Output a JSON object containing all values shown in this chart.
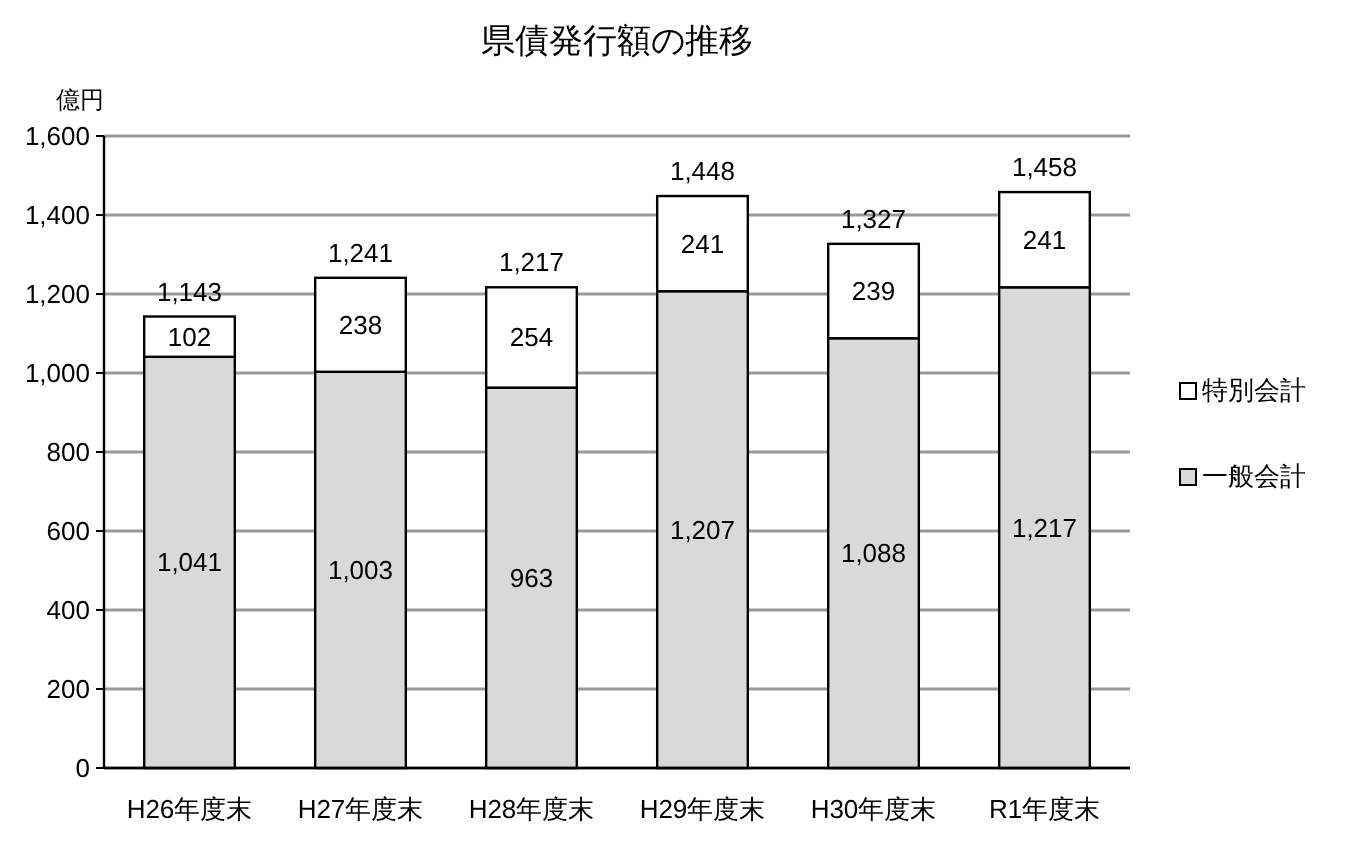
{
  "chart_data": {
    "type": "bar",
    "title": "県債発行額の推移",
    "ylabel": "億円",
    "categories": [
      "H26年度末",
      "H27年度末",
      "H28年度末",
      "H29年度末",
      "H30年度末",
      "R1年度末"
    ],
    "stacked": true,
    "series": [
      {
        "name": "一般会計",
        "color": "#d9d9d9",
        "values": [
          1041,
          1003,
          963,
          1207,
          1088,
          1217
        ],
        "value_labels": [
          "1,041",
          "1,003",
          "963",
          "1,207",
          "1,088",
          "1,217"
        ]
      },
      {
        "name": "特別会計",
        "color": "#ffffff",
        "values": [
          102,
          238,
          254,
          241,
          239,
          241
        ],
        "value_labels": [
          "102",
          "238",
          "254",
          "241",
          "239",
          "241"
        ]
      }
    ],
    "totals": [
      "1,143",
      "1,241",
      "1,217",
      "1,448",
      "1,327",
      "1,458"
    ],
    "ylim": [
      0,
      1600
    ],
    "yticks": [
      0,
      200,
      400,
      600,
      800,
      {
        "value": 1000,
        "label": "1,000"
      },
      {
        "value": 1200,
        "label": "1,200"
      },
      {
        "value": 1400,
        "label": "1,400"
      },
      {
        "value": 1600,
        "label": "1,600"
      }
    ],
    "grid": "y",
    "legend": "right"
  }
}
